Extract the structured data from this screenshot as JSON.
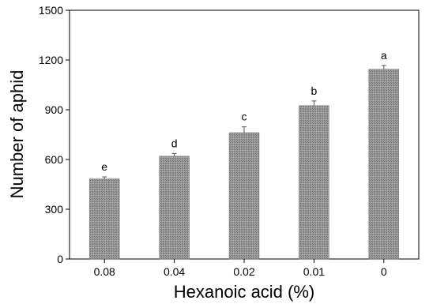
{
  "chart_data": {
    "type": "bar",
    "xlabel": "Hexanoic acid (%)",
    "ylabel": "Number of aphid",
    "categories": [
      "0.08",
      "0.04",
      "0.02",
      "0.01",
      "0"
    ],
    "values": [
      483,
      620,
      762,
      925,
      1145
    ],
    "errors": [
      12,
      16,
      35,
      28,
      22
    ],
    "significance_labels": [
      "e",
      "d",
      "c",
      "b",
      "a"
    ],
    "ylim": [
      0,
      1500
    ],
    "yticks": [
      0,
      300,
      600,
      900,
      1200,
      1500
    ],
    "ytick_labels": [
      "0",
      "300",
      "600",
      "900",
      "1200",
      "1500"
    ],
    "grid": false,
    "bar_color": "#8c8c8c"
  }
}
